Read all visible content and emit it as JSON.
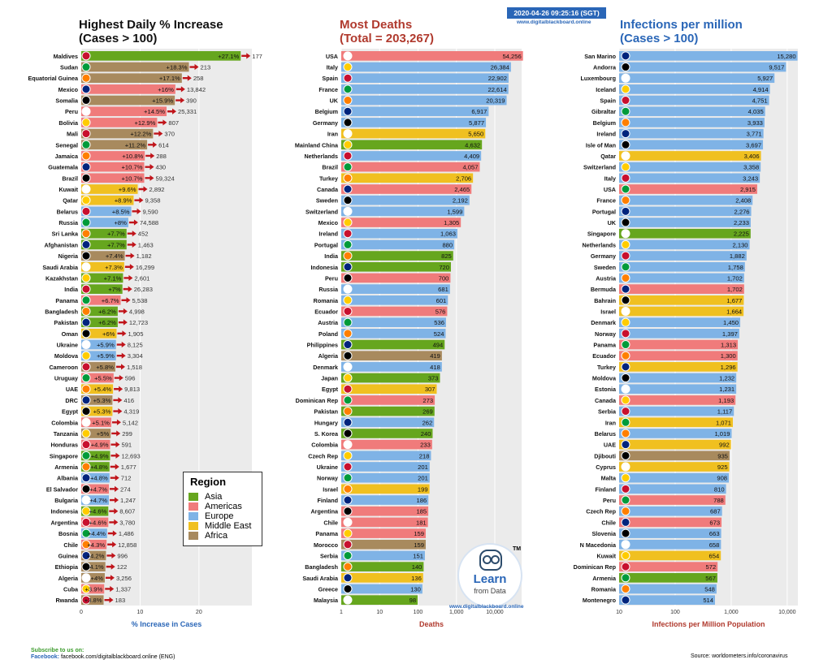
{
  "header": {
    "date_stamp": "2020-04-26 09:25:16 (SGT)",
    "site_url": "www.digitalblackboard.online"
  },
  "colors": {
    "Asia": "#66a61e",
    "Americas": "#f07b7b",
    "Europe": "#7fb3e6",
    "Middle East": "#f0c020",
    "Africa": "#a88a5e",
    "arrow": "#c0141a",
    "panel": "#ebebeb",
    "grid": "#ffffff"
  },
  "legend": {
    "title": "Region",
    "items": [
      "Asia",
      "Americas",
      "Europe",
      "Middle East",
      "Africa"
    ]
  },
  "logo": {
    "text1": "Learn",
    "text2": "from Data",
    "tm": "TM",
    "url": "www.digitalblackboard.online"
  },
  "footer": {
    "subscribe": "Subscribe to us on:",
    "facebook_label": "Facebook:",
    "facebook_url": "facebook.com/digitalblackboard.online (ENG)",
    "source": "Source: worldometers.info/coronavirus"
  },
  "chart_data": [
    {
      "type": "bar",
      "title": "Highest Daily % Increase\n(Cases > 100)",
      "xlabel": "% Increase in Cases",
      "xlim": [
        0,
        29
      ],
      "xticks": [
        0,
        10,
        20
      ],
      "xtick_labels": [
        "0",
        "10",
        "20"
      ],
      "categories": [
        "Maldives",
        "Sudan",
        "Equatorial Guinea",
        "Mexico",
        "Somalia",
        "Peru",
        "Bolivia",
        "Mali",
        "Senegal",
        "Jamaica",
        "Guatemala",
        "Brazil",
        "Kuwait",
        "Qatar",
        "Belarus",
        "Russia",
        "Sri Lanka",
        "Afghanistan",
        "Nigeria",
        "Saudi Arabia",
        "Kazakhstan",
        "India",
        "Panama",
        "Bangladesh",
        "Pakistan",
        "Oman",
        "Ukraine",
        "Moldova",
        "Cameroon",
        "Uruguay",
        "UAE",
        "DRC",
        "Egypt",
        "Colombia",
        "Tanzania",
        "Honduras",
        "Singapore",
        "Armenia",
        "Albania",
        "El Salvador",
        "Bulgaria",
        "Indonesia",
        "Argentina",
        "Bosnia",
        "Chile",
        "Guinea",
        "Ethiopia",
        "Algeria",
        "Cuba",
        "Rwanda"
      ],
      "values": [
        27.1,
        18.3,
        17.1,
        16,
        15.9,
        14.5,
        12.9,
        12.2,
        11.2,
        10.8,
        10.7,
        10.7,
        9.6,
        8.9,
        8.5,
        8,
        7.7,
        7.7,
        7.4,
        7.3,
        7.1,
        7,
        6.7,
        6.2,
        6.2,
        6,
        5.9,
        5.9,
        5.8,
        5.5,
        5.4,
        5.3,
        5.3,
        5.1,
        5,
        4.9,
        4.9,
        4.8,
        4.8,
        4.7,
        4.7,
        4.6,
        4.6,
        4.4,
        4.3,
        4.2,
        4.1,
        4,
        3.9,
        3.8
      ],
      "value_labels": [
        "+27.1%",
        "+18.3%",
        "+17.1%",
        "+16%",
        "+15.9%",
        "+14.5%",
        "+12.9%",
        "+12.2%",
        "+11.2%",
        "+10.8%",
        "+10.7%",
        "+10.7%",
        "+9.6%",
        "+8.9%",
        "+8.5%",
        "+8%",
        "+7.7%",
        "+7.7%",
        "+7.4%",
        "+7.3%",
        "+7.1%",
        "+7%",
        "+6.7%",
        "+6.2%",
        "+6.2%",
        "+6%",
        "+5.9%",
        "+5.9%",
        "+5.8%",
        "+5.5%",
        "+5.4%",
        "+5.3%",
        "+5.3%",
        "+5.1%",
        "+5%",
        "+4.9%",
        "+4.9%",
        "+4.8%",
        "+4.8%",
        "+4.7%",
        "+4.7%",
        "+4.6%",
        "+4.6%",
        "+4.4%",
        "+4.3%",
        "+4.2%",
        "+4.1%",
        "+4%",
        "+3.9%",
        "+3.8%"
      ],
      "new_cases": [
        "177",
        "213",
        "258",
        "13,842",
        "390",
        "25,331",
        "807",
        "370",
        "614",
        "288",
        "430",
        "59,324",
        "2,892",
        "9,358",
        "9,590",
        "74,588",
        "452",
        "1,463",
        "1,182",
        "16,299",
        "2,601",
        "26,283",
        "5,538",
        "4,998",
        "12,723",
        "1,905",
        "8,125",
        "3,304",
        "1,518",
        "596",
        "9,813",
        "416",
        "4,319",
        "5,142",
        "299",
        "591",
        "12,693",
        "1,677",
        "712",
        "274",
        "1,247",
        "8,607",
        "3,780",
        "1,486",
        "12,858",
        "996",
        "122",
        "3,256",
        "1,337",
        "183"
      ],
      "regions": [
        "Asia",
        "Africa",
        "Africa",
        "Americas",
        "Africa",
        "Americas",
        "Americas",
        "Africa",
        "Africa",
        "Americas",
        "Americas",
        "Americas",
        "Middle East",
        "Middle East",
        "Europe",
        "Europe",
        "Asia",
        "Asia",
        "Africa",
        "Middle East",
        "Asia",
        "Asia",
        "Americas",
        "Asia",
        "Asia",
        "Middle East",
        "Europe",
        "Europe",
        "Africa",
        "Americas",
        "Middle East",
        "Africa",
        "Middle East",
        "Americas",
        "Africa",
        "Americas",
        "Asia",
        "Asia",
        "Europe",
        "Americas",
        "Europe",
        "Asia",
        "Americas",
        "Europe",
        "Americas",
        "Africa",
        "Africa",
        "Africa",
        "Americas",
        "Africa"
      ],
      "legend_position": "bottom-right"
    },
    {
      "type": "bar",
      "title": "Most Deaths\n(Total = 203,267)",
      "xlabel": "Deaths",
      "log_scale": true,
      "xlim": [
        1,
        50000
      ],
      "xticks": [
        1,
        10,
        100,
        1000,
        10000
      ],
      "xtick_labels": [
        "1",
        "10",
        "100",
        "1,000",
        "10,000"
      ],
      "categories": [
        "USA",
        "Italy",
        "Spain",
        "France",
        "UK",
        "Belgium",
        "Germany",
        "Iran",
        "Mainland China",
        "Netherlands",
        "Brazil",
        "Turkey",
        "Canada",
        "Sweden",
        "Switzerland",
        "Mexico",
        "Ireland",
        "Portugal",
        "India",
        "Indonesia",
        "Peru",
        "Russia",
        "Romania",
        "Ecuador",
        "Austria",
        "Poland",
        "Philippines",
        "Algeria",
        "Denmark",
        "Japan",
        "Egypt",
        "Dominican Rep",
        "Pakistan",
        "Hungary",
        "S. Korea",
        "Colombia",
        "Czech Rep",
        "Ukraine",
        "Norway",
        "Israel",
        "Finland",
        "Argentina",
        "Chile",
        "Panama",
        "Morocco",
        "Serbia",
        "Bangladesh",
        "Saudi Arabia",
        "Greece",
        "Malaysia"
      ],
      "values": [
        54256,
        26384,
        22902,
        22614,
        20319,
        6917,
        5877,
        5650,
        4632,
        4409,
        4057,
        2706,
        2465,
        2192,
        1599,
        1305,
        1063,
        880,
        825,
        720,
        700,
        681,
        601,
        576,
        536,
        524,
        494,
        419,
        418,
        373,
        307,
        273,
        269,
        262,
        240,
        233,
        218,
        201,
        201,
        199,
        186,
        185,
        181,
        159,
        159,
        151,
        140,
        136,
        130,
        98
      ],
      "value_labels": [
        "54,256",
        "26,384",
        "22,902",
        "22,614",
        "20,319",
        "6,917",
        "5,877",
        "5,650",
        "4,632",
        "4,409",
        "4,057",
        "2,706",
        "2,465",
        "2,192",
        "1,599",
        "1,305",
        "1,063",
        "880",
        "825",
        "720",
        "700",
        "681",
        "601",
        "576",
        "536",
        "524",
        "494",
        "419",
        "418",
        "373",
        "307",
        "273",
        "269",
        "262",
        "240",
        "233",
        "218",
        "201",
        "201",
        "199",
        "186",
        "185",
        "181",
        "159",
        "159",
        "151",
        "140",
        "136",
        "130",
        "98"
      ],
      "regions": [
        "Americas",
        "Europe",
        "Europe",
        "Europe",
        "Europe",
        "Europe",
        "Europe",
        "Middle East",
        "Asia",
        "Europe",
        "Americas",
        "Middle East",
        "Americas",
        "Europe",
        "Europe",
        "Americas",
        "Europe",
        "Europe",
        "Asia",
        "Asia",
        "Americas",
        "Europe",
        "Europe",
        "Americas",
        "Europe",
        "Europe",
        "Asia",
        "Africa",
        "Europe",
        "Asia",
        "Middle East",
        "Americas",
        "Asia",
        "Europe",
        "Asia",
        "Americas",
        "Europe",
        "Europe",
        "Europe",
        "Middle East",
        "Europe",
        "Americas",
        "Americas",
        "Americas",
        "Africa",
        "Europe",
        "Asia",
        "Middle East",
        "Europe",
        "Asia"
      ]
    },
    {
      "type": "bar",
      "title": "Infections per million\n(Cases > 100)",
      "xlabel": "Infections per Million Population",
      "log_scale": true,
      "xlim": [
        10,
        15500
      ],
      "xticks": [
        10,
        100,
        1000,
        10000
      ],
      "xtick_labels": [
        "10",
        "100",
        "1,000",
        "10,000"
      ],
      "categories": [
        "San Marino",
        "Andorra",
        "Luxembourg",
        "Iceland",
        "Spain",
        "Gibraltar",
        "Belgium",
        "Ireland",
        "Isle of Man",
        "Qatar",
        "Switzerland",
        "Italy",
        "USA",
        "France",
        "Portugal",
        "UK",
        "Singapore",
        "Netherlands",
        "Germany",
        "Sweden",
        "Austria",
        "Bermuda",
        "Bahrain",
        "Israel",
        "Denmark",
        "Norway",
        "Panama",
        "Ecuador",
        "Turkey",
        "Moldova",
        "Estonia",
        "Canada",
        "Serbia",
        "Iran",
        "Belarus",
        "UAE",
        "Djibouti",
        "Cyprus",
        "Malta",
        "Finland",
        "Peru",
        "Czech Rep",
        "Chile",
        "Slovenia",
        "N Macedonia",
        "Kuwait",
        "Dominican Rep",
        "Armenia",
        "Romania",
        "Montenegro"
      ],
      "values": [
        15280,
        9517,
        5927,
        4914,
        4751,
        4035,
        3933,
        3771,
        3697,
        3406,
        3358,
        3243,
        2915,
        2408,
        2276,
        2233,
        2225,
        2130,
        1882,
        1758,
        1702,
        1702,
        1677,
        1664,
        1450,
        1397,
        1313,
        1300,
        1296,
        1232,
        1231,
        1193,
        1117,
        1071,
        1019,
        992,
        935,
        925,
        908,
        810,
        788,
        687,
        673,
        663,
        658,
        654,
        572,
        567,
        548,
        514
      ],
      "value_labels": [
        "15,280",
        "9,517",
        "5,927",
        "4,914",
        "4,751",
        "4,035",
        "3,933",
        "3,771",
        "3,697",
        "3,406",
        "3,358",
        "3,243",
        "2,915",
        "2,408",
        "2,276",
        "2,233",
        "2,225",
        "2,130",
        "1,882",
        "1,758",
        "1,702",
        "1,702",
        "1,677",
        "1,664",
        "1,450",
        "1,397",
        "1,313",
        "1,300",
        "1,296",
        "1,232",
        "1,231",
        "1,193",
        "1,117",
        "1,071",
        "1,019",
        "992",
        "935",
        "925",
        "908",
        "810",
        "788",
        "687",
        "673",
        "663",
        "658",
        "654",
        "572",
        "567",
        "548",
        "514"
      ],
      "regions": [
        "Europe",
        "Europe",
        "Europe",
        "Europe",
        "Europe",
        "Europe",
        "Europe",
        "Europe",
        "Europe",
        "Middle East",
        "Europe",
        "Europe",
        "Americas",
        "Europe",
        "Europe",
        "Europe",
        "Asia",
        "Europe",
        "Europe",
        "Europe",
        "Europe",
        "Americas",
        "Middle East",
        "Middle East",
        "Europe",
        "Europe",
        "Americas",
        "Americas",
        "Middle East",
        "Europe",
        "Europe",
        "Americas",
        "Europe",
        "Middle East",
        "Europe",
        "Middle East",
        "Africa",
        "Middle East",
        "Europe",
        "Europe",
        "Americas",
        "Europe",
        "Americas",
        "Europe",
        "Europe",
        "Middle East",
        "Americas",
        "Asia",
        "Europe",
        "Europe"
      ]
    }
  ]
}
